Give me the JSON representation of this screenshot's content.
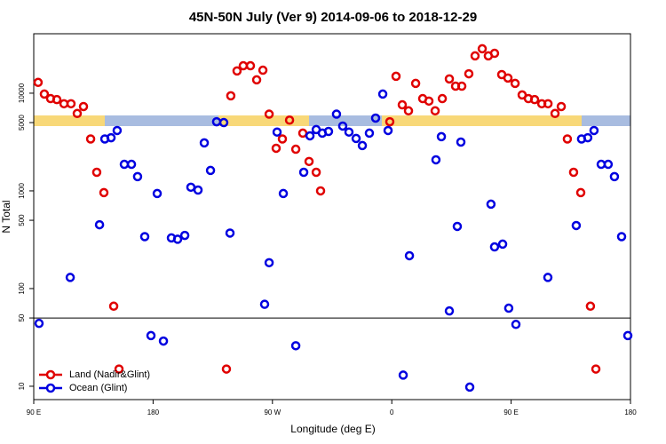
{
  "chart_data": {
    "type": "scatter",
    "title": "45N-50N July (Ver 9)   2014-09-06 to 2018-12-29",
    "x_label": "Longitude (deg E)",
    "y_label": "N Total",
    "log_y": true,
    "legend": "bottomleft",
    "reference_line": 50,
    "xlim": [
      90,
      540
    ],
    "xticks": [
      {
        "value": 90,
        "label": "90 E"
      },
      180,
      {
        "value": 270,
        "label": "90 W"
      },
      {
        "value": 360,
        "label": "0"
      },
      {
        "value": 450,
        "label": "90 E"
      },
      {
        "value": 540,
        "label": "180"
      }
    ],
    "ylim": [
      7.3,
      40600
    ],
    "yticks": [
      10,
      50,
      100,
      500,
      1000,
      5000,
      10000
    ],
    "series": [
      {
        "name": "Land (Nadir&Glint)",
        "color": "#e00000",
        "x": [
          93.3,
          98.0,
          102.7,
          107.4,
          112.8,
          118.1,
          122.8,
          127.5,
          132.9,
          137.5,
          142.9,
          150.3,
          154.3,
          235.3,
          238.6,
          243.3,
          248.0,
          253.4,
          258.1,
          262.8,
          267.5,
          272.8,
          277.5,
          282.9,
          287.6,
          292.9,
          297.6,
          303.0,
          306.3,
          358.5,
          363.2,
          367.9,
          372.6,
          378.0,
          383.3,
          388.0,
          392.7,
          398.1,
          403.4,
          408.1,
          412.8,
          418.1,
          422.8,
          428.2,
          432.8,
          437.5,
          442.9,
          447.6,
          453.0,
          458.3,
          463.0,
          467.7,
          473.1,
          477.8,
          483.1,
          487.8,
          492.4,
          497.1,
          502.5,
          509.8,
          513.9
        ],
        "values": [
          12900,
          9800,
          8800,
          8600,
          7800,
          7800,
          6200,
          7300,
          3400,
          1550,
          960,
          66,
          15,
          15,
          9400,
          16900,
          19100,
          19100,
          13700,
          17200,
          6100,
          2730,
          3400,
          5300,
          2670,
          3900,
          2000,
          1550,
          1000,
          5100,
          14900,
          7600,
          6600,
          12600,
          8800,
          8300,
          6600,
          8800,
          14000,
          11800,
          11800,
          15800,
          24100,
          28500,
          24100,
          25600,
          15500,
          14300,
          12600,
          9600,
          8800,
          8600,
          7800,
          7800,
          6200,
          7300,
          3400,
          1550,
          960,
          66,
          15
        ]
      },
      {
        "name": "Ocean (Glint)",
        "color": "#0000e0",
        "x": [
          94.0,
          117.5,
          139.6,
          143.6,
          148.3,
          152.9,
          158.3,
          163.7,
          168.3,
          173.7,
          178.4,
          183.1,
          187.8,
          193.8,
          198.5,
          203.9,
          208.5,
          213.9,
          218.6,
          223.3,
          227.9,
          233.3,
          238.0,
          264.1,
          267.5,
          273.5,
          278.2,
          287.6,
          293.6,
          298.3,
          303.0,
          307.6,
          312.3,
          318.3,
          323.0,
          327.7,
          333.1,
          337.8,
          343.1,
          347.8,
          353.2,
          357.2,
          368.6,
          373.3,
          393.3,
          397.4,
          403.4,
          409.4,
          412.1,
          418.8,
          434.8,
          437.5,
          443.6,
          448.2,
          453.6,
          477.7,
          499.1,
          503.1,
          507.8,
          512.5,
          517.9,
          523.2,
          527.9,
          533.3,
          538.0
        ],
        "values": [
          44,
          130,
          450,
          3400,
          3500,
          4150,
          1870,
          1870,
          1400,
          340,
          33,
          940,
          29,
          330,
          320,
          350,
          1090,
          1020,
          3100,
          1620,
          5100,
          5000,
          370,
          69,
          184,
          4000,
          940,
          26,
          1550,
          3660,
          4240,
          3900,
          4060,
          6100,
          4610,
          4000,
          3440,
          2910,
          3900,
          5560,
          9800,
          4150,
          13,
          217,
          2080,
          3590,
          59,
          433,
          3160,
          9.8,
          731,
          267,
          285,
          63,
          43,
          130,
          442,
          3400,
          3500,
          4150,
          1870,
          1870,
          1400,
          340,
          33
        ]
      }
    ]
  }
}
